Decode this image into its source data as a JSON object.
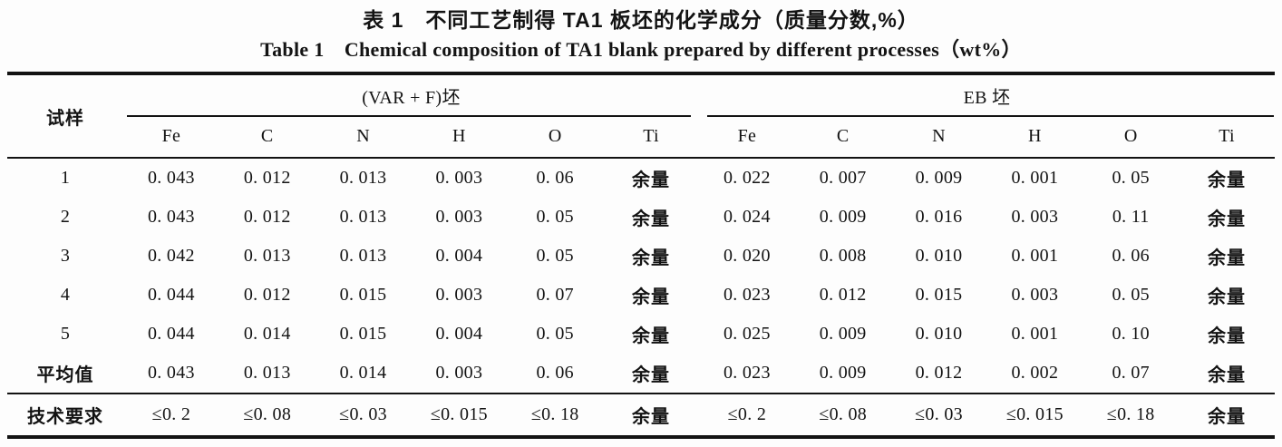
{
  "titles": {
    "cn": "表 1　不同工艺制得 TA1 板坯的化学成分（质量分数,%）",
    "en": "Table 1　Chemical composition of TA1 blank prepared by different processes（wt%）"
  },
  "table": {
    "sample_header": "试样",
    "groups": [
      {
        "label": "(VAR + F)坯",
        "elements": [
          "Fe",
          "C",
          "N",
          "H",
          "O",
          "Ti"
        ]
      },
      {
        "label": "EB 坯",
        "elements": [
          "Fe",
          "C",
          "N",
          "H",
          "O",
          "Ti"
        ]
      }
    ],
    "rows": [
      {
        "label": "1",
        "var_f": [
          "0. 043",
          "0. 012",
          "0. 013",
          "0. 003",
          "0. 06",
          "余量"
        ],
        "eb": [
          "0. 022",
          "0. 007",
          "0. 009",
          "0. 001",
          "0. 05",
          "余量"
        ]
      },
      {
        "label": "2",
        "var_f": [
          "0. 043",
          "0. 012",
          "0. 013",
          "0. 003",
          "0. 05",
          "余量"
        ],
        "eb": [
          "0. 024",
          "0. 009",
          "0. 016",
          "0. 003",
          "0. 11",
          "余量"
        ]
      },
      {
        "label": "3",
        "var_f": [
          "0. 042",
          "0. 013",
          "0. 013",
          "0. 004",
          "0. 05",
          "余量"
        ],
        "eb": [
          "0. 020",
          "0. 008",
          "0. 010",
          "0. 001",
          "0. 06",
          "余量"
        ]
      },
      {
        "label": "4",
        "var_f": [
          "0. 044",
          "0. 012",
          "0. 015",
          "0. 003",
          "0. 07",
          "余量"
        ],
        "eb": [
          "0. 023",
          "0. 012",
          "0. 015",
          "0. 003",
          "0. 05",
          "余量"
        ]
      },
      {
        "label": "5",
        "var_f": [
          "0. 044",
          "0. 014",
          "0. 015",
          "0. 004",
          "0. 05",
          "余量"
        ],
        "eb": [
          "0. 025",
          "0. 009",
          "0. 010",
          "0. 001",
          "0. 10",
          "余量"
        ]
      },
      {
        "label": "平均值",
        "var_f": [
          "0. 043",
          "0. 013",
          "0. 014",
          "0. 003",
          "0. 06",
          "余量"
        ],
        "eb": [
          "0. 023",
          "0. 009",
          "0. 012",
          "0. 002",
          "0. 07",
          "余量"
        ]
      },
      {
        "label": "技术要求",
        "var_f": [
          "≤0. 2",
          "≤0. 08",
          "≤0. 03",
          "≤0. 015",
          "≤0. 18",
          "余量"
        ],
        "eb": [
          "≤0. 2",
          "≤0. 08",
          "≤0. 03",
          "≤0. 015",
          "≤0. 18",
          "余量"
        ]
      }
    ]
  }
}
